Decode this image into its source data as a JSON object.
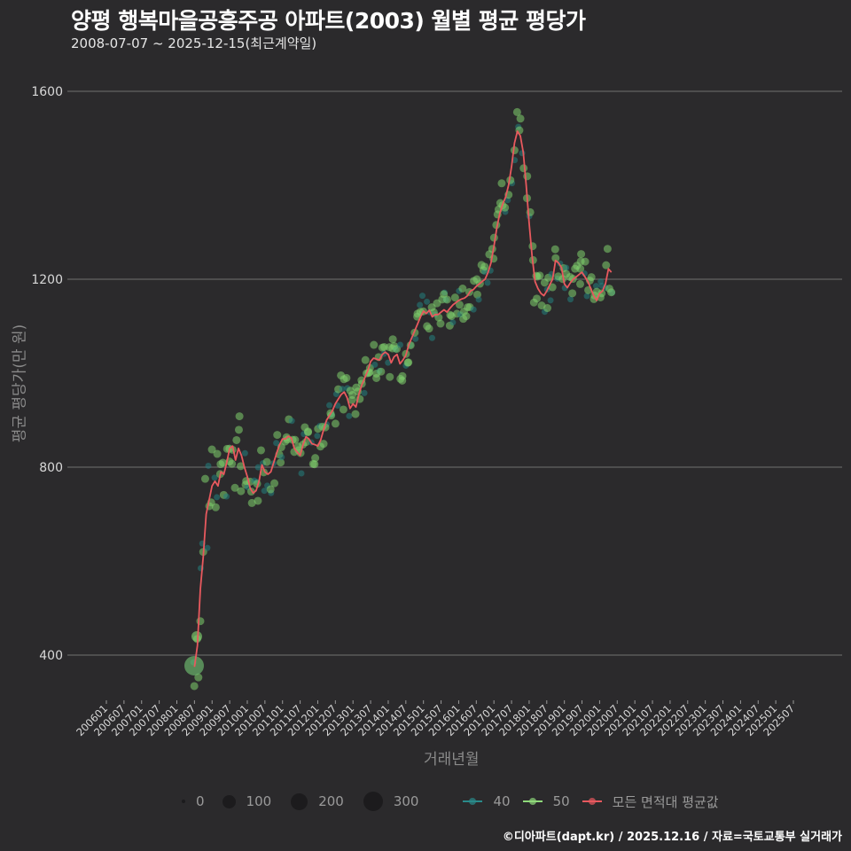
{
  "header": {
    "title": "양평 행복마을공흥주공 아파트(2003) 월별 평균 평당가",
    "subtitle": "2008-07-07 ~ 2025-12-15(최근계약일)"
  },
  "footer": "©디아파트(dapt.kr) / 2025.12.16 / 자료=국토교통부 실거래가",
  "legend": {
    "size": [
      {
        "label": "0",
        "r": 2
      },
      {
        "label": "100",
        "r": 8
      },
      {
        "label": "200",
        "r": 10
      },
      {
        "label": "300",
        "r": 11
      }
    ],
    "series": [
      {
        "label": "40",
        "color": "#2a8a8a"
      },
      {
        "label": "50",
        "color": "#8fd97a"
      },
      {
        "label": "모든 면적대 평균값",
        "color": "#e8595e"
      }
    ]
  },
  "colors": {
    "bg": "#2b2a2c",
    "grid": "#5a5a5a",
    "s40": "#23807f",
    "s50": "#7fcf6e",
    "avg": "#e8595e"
  },
  "chart_data": {
    "type": "line",
    "title": "양평 행복마을공흥주공 아파트(2003) 월별 평균 평당가",
    "subtitle": "2008-07-07 ~ 2025-12-15(최근계약일)",
    "xlabel": "거래년월",
    "ylabel": "평균 평당가(만 원)",
    "ylim": [
      290,
      1620
    ],
    "yticks": [
      400,
      800,
      1200,
      1600
    ],
    "xticks": [
      "200601",
      "200607",
      "200701",
      "200707",
      "200801",
      "200807",
      "200901",
      "200907",
      "201001",
      "201007",
      "201101",
      "201107",
      "201201",
      "201207",
      "201301",
      "201307",
      "201401",
      "201407",
      "201501",
      "201507",
      "201601",
      "201607",
      "201701",
      "201707",
      "201801",
      "201807",
      "201901",
      "201907",
      "202001",
      "202007",
      "202101",
      "202107",
      "202201",
      "202207",
      "202301",
      "202307",
      "202401",
      "202407",
      "202501",
      "202507"
    ],
    "grid": "horizontal",
    "legend_position": "bottom",
    "series": [
      {
        "name": "모든 면적대 평균값",
        "color": "#e8595e",
        "points": [
          [
            "200807",
            375
          ],
          [
            "200808",
            420
          ],
          [
            "200809",
            540
          ],
          [
            "200810",
            610
          ],
          [
            "200811",
            700
          ],
          [
            "200812",
            730
          ],
          [
            "200901",
            760
          ],
          [
            "200902",
            770
          ],
          [
            "200903",
            760
          ],
          [
            "200904",
            790
          ],
          [
            "200905",
            785
          ],
          [
            "200906",
            810
          ],
          [
            "200907",
            840
          ],
          [
            "200908",
            845
          ],
          [
            "200909",
            815
          ],
          [
            "200910",
            840
          ],
          [
            "200911",
            825
          ],
          [
            "200912",
            800
          ],
          [
            "201001",
            780
          ],
          [
            "201002",
            755
          ],
          [
            "201003",
            745
          ],
          [
            "201004",
            750
          ],
          [
            "201005",
            770
          ],
          [
            "201006",
            805
          ],
          [
            "201007",
            790
          ],
          [
            "201008",
            785
          ],
          [
            "201009",
            790
          ],
          [
            "201010",
            810
          ],
          [
            "201011",
            830
          ],
          [
            "201012",
            848
          ],
          [
            "201101",
            860
          ],
          [
            "201102",
            860
          ],
          [
            "201103",
            866
          ],
          [
            "201104",
            862
          ],
          [
            "201105",
            840
          ],
          [
            "201106",
            832
          ],
          [
            "201107",
            825
          ],
          [
            "201108",
            848
          ],
          [
            "201109",
            865
          ],
          [
            "201110",
            860
          ],
          [
            "201111",
            850
          ],
          [
            "201112",
            848
          ],
          [
            "201201",
            845
          ],
          [
            "201202",
            858
          ],
          [
            "201203",
            880
          ],
          [
            "201204",
            900
          ],
          [
            "201205",
            910
          ],
          [
            "201206",
            920
          ],
          [
            "201207",
            935
          ],
          [
            "201208",
            945
          ],
          [
            "201209",
            955
          ],
          [
            "201210",
            960
          ],
          [
            "201211",
            948
          ],
          [
            "201212",
            925
          ],
          [
            "201301",
            935
          ],
          [
            "201302",
            928
          ],
          [
            "201303",
            955
          ],
          [
            "201304",
            975
          ],
          [
            "201305",
            990
          ],
          [
            "201306",
            1005
          ],
          [
            "201307",
            1025
          ],
          [
            "201308",
            1032
          ],
          [
            "201309",
            1030
          ],
          [
            "201310",
            1028
          ],
          [
            "201311",
            1040
          ],
          [
            "201312",
            1045
          ],
          [
            "201401",
            1040
          ],
          [
            "201402",
            1022
          ],
          [
            "201403",
            1035
          ],
          [
            "201404",
            1040
          ],
          [
            "201405",
            1020
          ],
          [
            "201406",
            1028
          ],
          [
            "201407",
            1038
          ],
          [
            "201408",
            1060
          ],
          [
            "201409",
            1075
          ],
          [
            "201410",
            1090
          ],
          [
            "201411",
            1105
          ],
          [
            "201412",
            1120
          ],
          [
            "201501",
            1132
          ],
          [
            "201502",
            1127
          ],
          [
            "201503",
            1134
          ],
          [
            "201504",
            1120
          ],
          [
            "201505",
            1125
          ],
          [
            "201506",
            1125
          ],
          [
            "201507",
            1130
          ],
          [
            "201508",
            1135
          ],
          [
            "201509",
            1130
          ],
          [
            "201510",
            1138
          ],
          [
            "201511",
            1145
          ],
          [
            "201512",
            1150
          ],
          [
            "201601",
            1155
          ],
          [
            "201602",
            1158
          ],
          [
            "201603",
            1160
          ],
          [
            "201604",
            1165
          ],
          [
            "201605",
            1175
          ],
          [
            "201606",
            1178
          ],
          [
            "201607",
            1185
          ],
          [
            "201608",
            1190
          ],
          [
            "201609",
            1195
          ],
          [
            "201610",
            1200
          ],
          [
            "201611",
            1215
          ],
          [
            "201612",
            1235
          ],
          [
            "201701",
            1270
          ],
          [
            "201702",
            1310
          ],
          [
            "201703",
            1340
          ],
          [
            "201704",
            1360
          ],
          [
            "201705",
            1375
          ],
          [
            "201706",
            1400
          ],
          [
            "201707",
            1440
          ],
          [
            "201708",
            1490
          ],
          [
            "201709",
            1515
          ],
          [
            "201710",
            1505
          ],
          [
            "201711",
            1470
          ],
          [
            "201712",
            1400
          ],
          [
            "201801",
            1320
          ],
          [
            "201802",
            1250
          ],
          [
            "201803",
            1195
          ],
          [
            "201804",
            1180
          ],
          [
            "201805",
            1170
          ],
          [
            "201806",
            1165
          ],
          [
            "201807",
            1175
          ],
          [
            "201808",
            1188
          ],
          [
            "201809",
            1200
          ],
          [
            "201810",
            1240
          ],
          [
            "201811",
            1235
          ],
          [
            "201812",
            1225
          ],
          [
            "201901",
            1190
          ],
          [
            "201902",
            1182
          ],
          [
            "201903",
            1192
          ],
          [
            "201904",
            1200
          ],
          [
            "201905",
            1205
          ],
          [
            "201906",
            1210
          ],
          [
            "201907",
            1215
          ],
          [
            "201908",
            1205
          ],
          [
            "201909",
            1195
          ],
          [
            "201910",
            1180
          ],
          [
            "201911",
            1165
          ],
          [
            "201912",
            1155
          ],
          [
            "202001",
            1170
          ],
          [
            "202002",
            1175
          ],
          [
            "202003",
            1190
          ],
          [
            "202004",
            1222
          ],
          [
            "202005",
            1215
          ]
        ]
      },
      {
        "name": "40",
        "color": "#2a8a8a",
        "points": []
      },
      {
        "name": "50",
        "color": "#8fd97a",
        "points": []
      }
    ]
  }
}
